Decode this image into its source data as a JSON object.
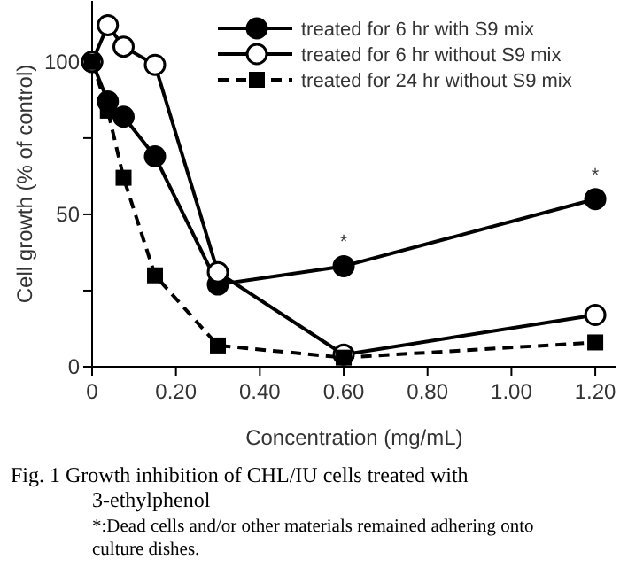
{
  "chart_data": {
    "type": "line",
    "title": "Fig. 1 Growth inhibition of CHL/IU cells treated with 3-ethylphenol",
    "xlabel": "Concentration (mg/mL)",
    "ylabel": "Cell growth (% of control)",
    "x": [
      0,
      0.0375,
      0.075,
      0.15,
      0.3,
      0.6,
      1.2
    ],
    "series": [
      {
        "name": "treated for 6 hr with S9 mix",
        "color": "#000000",
        "marker": "circle",
        "line_style": "solid",
        "values": [
          100,
          87,
          82,
          69,
          27,
          33,
          55
        ]
      },
      {
        "name": "treated for 6 hr without S9 mix",
        "color": "#000000",
        "marker": "open-circle",
        "line_style": "solid",
        "values": [
          100,
          112,
          105,
          99,
          31,
          4,
          17
        ]
      },
      {
        "name": "treated for 24 hr without S9 mix",
        "color": "#000000",
        "marker": "square",
        "line_style": "dashed",
        "values": [
          100,
          84,
          62,
          30,
          7,
          3,
          8
        ]
      }
    ],
    "xlim": [
      0,
      1.25
    ],
    "xticks": [
      {
        "value": 0,
        "label": "0"
      },
      {
        "value": 0.2,
        "label": "0.20"
      },
      {
        "value": 0.4,
        "label": "0.40"
      },
      {
        "value": 0.6,
        "label": "0.60"
      },
      {
        "value": 0.8,
        "label": "0.80"
      },
      {
        "value": 1,
        "label": "1.00"
      },
      {
        "value": 1.2,
        "label": "1.20"
      }
    ],
    "ylim": [
      0,
      120
    ],
    "yticks": [
      0,
      {
        "value": 25,
        "label": null
      },
      50,
      {
        "value": 75,
        "label": null
      },
      100
    ],
    "legend": "top right",
    "grid": false,
    "annotations": [
      {
        "text": "*",
        "x": 0.6,
        "y": 33
      },
      {
        "text": "*",
        "x": 1.2,
        "y": 55
      },
      "*:Dead cells and/or other materials remained adhering onto culture dishes."
    ]
  }
}
